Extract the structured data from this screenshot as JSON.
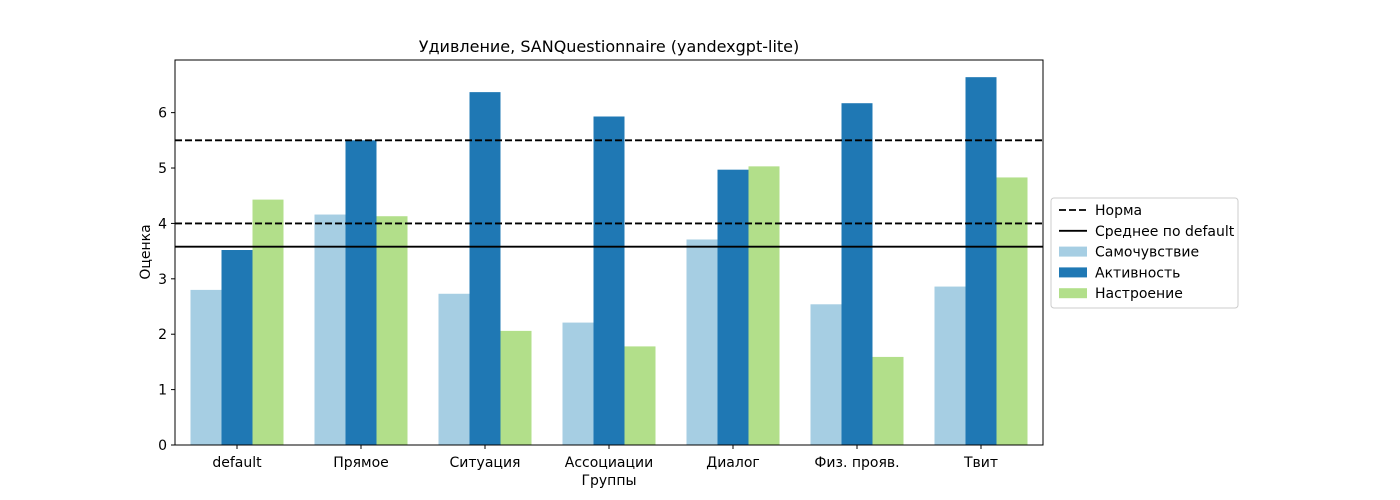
{
  "chart_data": {
    "type": "bar",
    "title": "Удивление, SANQuestionnaire (yandexgpt-lite)",
    "xlabel": "Группы",
    "ylabel": "Оценка",
    "ylim": [
      0,
      6.95
    ],
    "yticks": [
      0,
      1,
      2,
      3,
      4,
      5,
      6
    ],
    "grid": false,
    "legend_position": "right-outside",
    "categories": [
      "default",
      "Прямое",
      "Ситуация",
      "Ассоциации",
      "Диалог",
      "Физ. прояв.",
      "Твит"
    ],
    "series": [
      {
        "name": "Самочувствие",
        "color": "#a6cee3",
        "values": [
          2.8,
          4.16,
          2.73,
          2.21,
          3.71,
          2.54,
          2.86
        ]
      },
      {
        "name": "Активность",
        "color": "#1f78b4",
        "values": [
          3.52,
          5.5,
          6.37,
          5.93,
          4.97,
          6.17,
          6.64
        ]
      },
      {
        "name": "Настроение",
        "color": "#b2df8a",
        "values": [
          4.43,
          4.13,
          2.06,
          1.78,
          5.03,
          1.59,
          4.83
        ]
      }
    ],
    "reference_lines": [
      {
        "name": "Норма",
        "style": "dashed",
        "values": [
          4.0,
          5.5
        ]
      },
      {
        "name": "Среднее по default",
        "style": "solid",
        "values": [
          3.58
        ]
      }
    ]
  }
}
